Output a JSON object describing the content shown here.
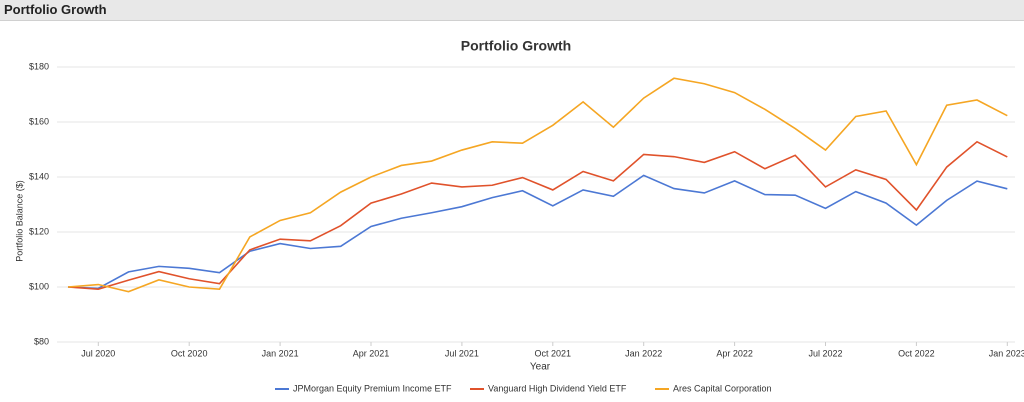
{
  "header": {
    "title": "Portfolio Growth"
  },
  "chart_data": {
    "type": "line",
    "title": "Portfolio Growth",
    "x_label": "Year",
    "y_label": "Portfolio Balance ($)",
    "x": [
      "2020-06",
      "2020-07",
      "2020-08",
      "2020-09",
      "2020-10",
      "2020-11",
      "2020-12",
      "2021-01",
      "2021-02",
      "2021-03",
      "2021-04",
      "2021-05",
      "2021-06",
      "2021-07",
      "2021-08",
      "2021-09",
      "2021-10",
      "2021-11",
      "2021-12",
      "2022-01",
      "2022-02",
      "2022-03",
      "2022-04",
      "2022-05",
      "2022-06",
      "2022-07",
      "2022-08",
      "2022-09",
      "2022-10",
      "2022-11",
      "2022-12",
      "2023-01"
    ],
    "xticks": [
      {
        "value": "2020-07",
        "label": "Jul 2020"
      },
      {
        "value": "2020-10",
        "label": "Oct 2020"
      },
      {
        "value": "2021-01",
        "label": "Jan 2021"
      },
      {
        "value": "2021-04",
        "label": "Apr 2021"
      },
      {
        "value": "2021-07",
        "label": "Jul 2021"
      },
      {
        "value": "2021-10",
        "label": "Oct 2021"
      },
      {
        "value": "2022-01",
        "label": "Jan 2022"
      },
      {
        "value": "2022-04",
        "label": "Apr 2022"
      },
      {
        "value": "2022-07",
        "label": "Jul 2022"
      },
      {
        "value": "2022-10",
        "label": "Oct 2022"
      },
      {
        "value": "2023-01",
        "label": "Jan 2023"
      }
    ],
    "ylim": [
      80,
      180
    ],
    "yticks": [
      {
        "value": 80,
        "label": "$80"
      },
      {
        "value": 100,
        "label": "$100"
      },
      {
        "value": 120,
        "label": "$120"
      },
      {
        "value": 140,
        "label": "$140"
      },
      {
        "value": 160,
        "label": "$160"
      },
      {
        "value": 180,
        "label": "$180"
      }
    ],
    "grid": true,
    "legend": "bottom",
    "series": [
      {
        "name": "JPMorgan Equity Premium Income ETF",
        "color": "#4c78d4",
        "values": [
          100,
          99.5,
          105.5,
          107.5,
          106.8,
          105.2,
          113,
          115.8,
          114,
          114.8,
          122,
          125,
          127,
          129.2,
          132.5,
          135,
          129.5,
          135.3,
          133,
          140.6,
          135.8,
          134.2,
          138.6,
          133.6,
          133.4,
          128.6,
          134.7,
          130.5,
          122.5,
          131.5,
          138.5,
          135.7
        ]
      },
      {
        "name": "Vanguard High Dividend Yield ETF",
        "color": "#e0522b",
        "values": [
          100,
          99.2,
          102.5,
          105.6,
          103,
          101.2,
          113.5,
          117.4,
          116.8,
          122.3,
          130.5,
          133.8,
          137.8,
          136.4,
          137,
          139.8,
          135.3,
          142,
          138.6,
          148.2,
          147.4,
          145.3,
          149.2,
          143,
          147.9,
          136.4,
          142.6,
          139.1,
          128,
          143.6,
          152.8,
          147.3
        ]
      },
      {
        "name": "Ares Capital Corporation",
        "color": "#f5a623",
        "values": [
          100,
          100.9,
          98.3,
          102.6,
          100,
          99.2,
          118.2,
          124.2,
          127,
          134.5,
          140,
          144.2,
          145.8,
          149.8,
          152.8,
          152.3,
          158.8,
          167.3,
          158.1,
          168.7,
          175.9,
          173.9,
          170.7,
          164.6,
          157.6,
          149.8,
          162,
          164,
          144.5,
          166.1,
          168,
          162.3
        ]
      }
    ]
  }
}
